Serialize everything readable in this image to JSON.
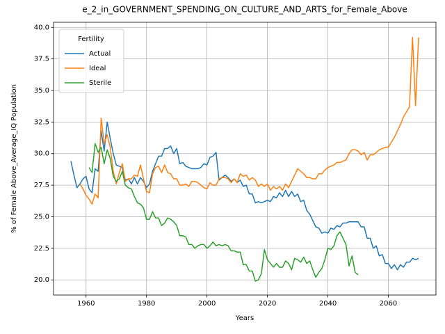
{
  "chart_data": {
    "type": "line",
    "title": "e_2_in_GOVERNMENT_SPENDING_ON_CULTURE_AND_ARTS_for_Female_Above",
    "x_label": "Years",
    "y_label": "% of Female Above_Average_IQ Population",
    "legend_title": "Fertility",
    "legend": "upper left",
    "grid": true,
    "x": [
      1955,
      1956,
      1957,
      1958,
      1959,
      1960,
      1961,
      1962,
      1963,
      1964,
      1965,
      1966,
      1967,
      1968,
      1969,
      1970,
      1971,
      1972,
      1973,
      1974,
      1975,
      1976,
      1977,
      1978,
      1979,
      1980,
      1981,
      1982,
      1983,
      1984,
      1985,
      1986,
      1987,
      1988,
      1989,
      1990,
      1991,
      1992,
      1993,
      1994,
      1995,
      1996,
      1997,
      1998,
      1999,
      2000,
      2001,
      2002,
      2003,
      2004,
      2005,
      2006,
      2007,
      2008,
      2009,
      2010,
      2011,
      2012,
      2013,
      2014,
      2015,
      2016,
      2017,
      2018,
      2019,
      2020,
      2021,
      2022,
      2023,
      2024,
      2025,
      2026,
      2027,
      2028,
      2029,
      2030,
      2031,
      2032,
      2033,
      2034,
      2035,
      2036,
      2037,
      2038,
      2039,
      2040,
      2041,
      2042,
      2043,
      2044,
      2045,
      2046,
      2047,
      2048,
      2049,
      2050,
      2051,
      2052,
      2053,
      2054,
      2055,
      2056,
      2057,
      2058,
      2059,
      2060,
      2061,
      2062,
      2063,
      2064,
      2065,
      2066,
      2067,
      2068,
      2069,
      2070
    ],
    "series": [
      {
        "name": "Actual",
        "color": "#1f77b4",
        "values": [
          29.4,
          28.3,
          27.3,
          27.6,
          28.0,
          28.2,
          27.2,
          26.9,
          28.8,
          28.6,
          31.8,
          30.2,
          32.5,
          31.2,
          30.0,
          29.1,
          29.0,
          28.9,
          27.9,
          28.0,
          27.6,
          28.1,
          27.6,
          28.1,
          27.8,
          27.3,
          27.6,
          28.6,
          29.2,
          29.8,
          29.8,
          30.4,
          30.4,
          30.6,
          30.0,
          30.4,
          29.2,
          29.3,
          29.0,
          28.9,
          28.8,
          28.8,
          28.8,
          28.9,
          29.2,
          29.1,
          29.7,
          29.8,
          30.1,
          27.9,
          28.1,
          28.3,
          28.1,
          27.8,
          28.0,
          27.7,
          27.9,
          27.4,
          27.5,
          26.8,
          26.8,
          26.1,
          26.2,
          26.1,
          26.2,
          26.3,
          26.2,
          26.6,
          26.5,
          26.9,
          26.6,
          27.1,
          26.6,
          27.0,
          26.6,
          26.8,
          26.2,
          26.3,
          25.5,
          25.2,
          24.7,
          24.2,
          24.1,
          23.7,
          23.8,
          23.7,
          24.1,
          24.0,
          24.3,
          24.2,
          24.5,
          24.5,
          24.6,
          24.6,
          24.6,
          24.6,
          24.2,
          24.2,
          23.3,
          23.3,
          22.5,
          22.7,
          21.9,
          22.0,
          21.3,
          21.3,
          20.9,
          21.2,
          20.8,
          21.2,
          21.0,
          21.4,
          21.4,
          21.7,
          21.6,
          21.7
        ]
      },
      {
        "name": "Ideal",
        "color": "#ff7f0e",
        "values": [
          null,
          null,
          null,
          27.6,
          27.2,
          26.7,
          26.4,
          26.0,
          26.8,
          26.5,
          32.8,
          30.8,
          31.5,
          30.5,
          28.6,
          27.6,
          28.5,
          29.2,
          27.8,
          28.0,
          28.0,
          28.3,
          28.2,
          29.1,
          28.0,
          27.0,
          26.9,
          28.4,
          28.9,
          29.0,
          28.5,
          29.1,
          28.5,
          28.4,
          28.0,
          28.0,
          27.5,
          27.5,
          27.6,
          27.4,
          27.8,
          27.8,
          27.7,
          27.5,
          27.3,
          27.2,
          27.7,
          27.5,
          27.5,
          28.0,
          28.1,
          28.1,
          28.0,
          27.7,
          28.0,
          27.7,
          28.4,
          28.2,
          28.3,
          27.9,
          28.1,
          27.9,
          27.4,
          27.6,
          27.4,
          27.6,
          27.1,
          27.4,
          27.2,
          27.4,
          27.1,
          27.6,
          27.3,
          27.8,
          28.3,
          28.8,
          28.6,
          28.4,
          28.1,
          28.1,
          28.0,
          28.0,
          28.4,
          28.4,
          28.7,
          28.9,
          29.0,
          29.1,
          29.3,
          29.3,
          29.4,
          29.5,
          30.0,
          30.3,
          30.3,
          30.2,
          29.9,
          30.1,
          29.5,
          29.9,
          29.9,
          30.1,
          30.3,
          30.4,
          30.5,
          30.5,
          30.9,
          31.3,
          31.8,
          32.3,
          32.9,
          33.3,
          33.7,
          39.2,
          33.8,
          39.2
        ]
      },
      {
        "name": "Sterile",
        "color": "#2ca02c",
        "values": [
          null,
          null,
          null,
          null,
          null,
          null,
          28.9,
          28.5,
          30.8,
          30.1,
          30.5,
          29.2,
          30.3,
          29.6,
          28.2,
          27.8,
          28.0,
          28.6,
          27.5,
          27.3,
          27.2,
          26.6,
          26.1,
          26.0,
          25.7,
          24.8,
          24.8,
          25.4,
          24.9,
          24.9,
          24.3,
          24.5,
          24.9,
          24.8,
          24.6,
          24.3,
          23.5,
          23.5,
          23.4,
          22.8,
          22.8,
          22.5,
          22.7,
          22.8,
          22.8,
          22.5,
          22.7,
          23.0,
          22.7,
          22.8,
          22.7,
          22.8,
          22.7,
          22.3,
          22.3,
          22.2,
          22.2,
          21.2,
          21.2,
          20.7,
          20.7,
          19.9,
          20.0,
          20.5,
          22.4,
          21.6,
          21.3,
          21.0,
          21.3,
          21.0,
          21.0,
          21.5,
          21.3,
          20.8,
          21.7,
          21.6,
          21.4,
          21.8,
          21.3,
          21.5,
          20.8,
          20.2,
          20.6,
          20.9,
          21.6,
          22.5,
          22.4,
          22.7,
          23.5,
          23.8,
          23.3,
          22.8,
          21.1,
          21.9,
          20.6,
          20.4,
          null,
          null,
          null,
          null,
          null,
          null,
          null,
          null,
          null,
          null,
          null,
          null,
          null,
          null,
          null,
          null,
          null,
          null,
          null,
          null
        ]
      }
    ],
    "xlim": [
      1949.25,
      2075.75
    ],
    "ylim": [
      18.8,
      40.4
    ],
    "xticks": [
      1960,
      1980,
      2000,
      2020,
      2040,
      2060
    ],
    "yticks": [
      {
        "value": 20,
        "label": "20.0"
      },
      22.5,
      {
        "value": 25,
        "label": "25.0"
      },
      27.5,
      {
        "value": 30,
        "label": "30.0"
      },
      32.5,
      {
        "value": 35,
        "label": "35.0"
      },
      37.5,
      {
        "value": 40,
        "label": "40.0"
      }
    ]
  }
}
